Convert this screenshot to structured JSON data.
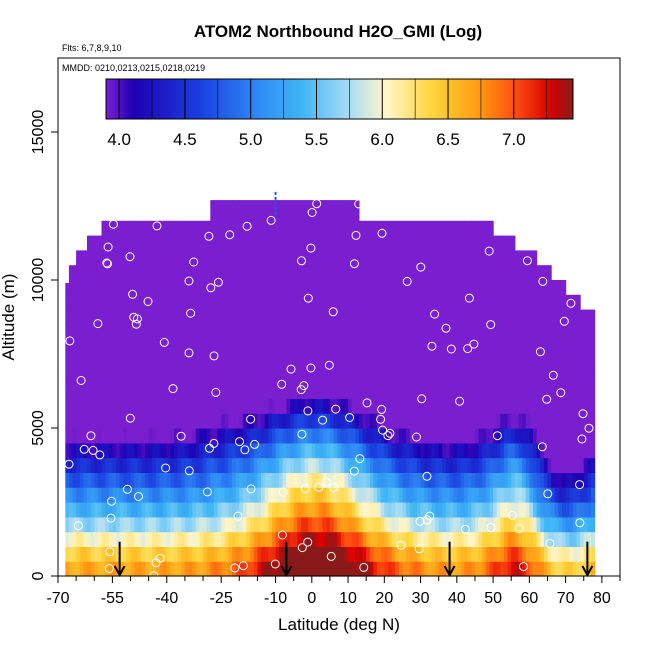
{
  "chart_data": {
    "type": "heatmap",
    "title": "ATOM2 Northbound H2O_GMI (Log)",
    "subtitle_flights": "Flts: 6,7,8,9,10",
    "subtitle_dates": "MMDD: 0210,0213,0215,0218,0219",
    "xlabel": "Latitude (deg N)",
    "ylabel": "Altitude (m)",
    "xlim": [
      -70,
      85
    ],
    "ylim": [
      0,
      17500
    ],
    "x_ticks": [
      -70,
      -55,
      -40,
      -25,
      -10,
      0,
      10,
      20,
      30,
      40,
      50,
      60,
      70,
      80
    ],
    "x_minor_ticks": [
      -65,
      -60,
      -50,
      -45,
      -35,
      -30,
      -20,
      -15,
      -5,
      5,
      15,
      25,
      35,
      45,
      55,
      65,
      75,
      85
    ],
    "y_ticks": [
      0,
      5000,
      10000,
      15000
    ],
    "colorbar": {
      "ticks": [
        4.0,
        4.5,
        5.0,
        5.5,
        6.0,
        6.5,
        7.0
      ],
      "range": [
        3.9,
        7.45
      ],
      "palette": [
        "#7a1fcf",
        "#1f00b4",
        "#1a3fe0",
        "#2f8cf5",
        "#3fb6f5",
        "#a8dcf5",
        "#fff6c8",
        "#ffd43a",
        "#ff9a12",
        "#ff4a10",
        "#d90000",
        "#8a1a1a"
      ],
      "palette_positions": [
        0.0,
        0.06,
        0.2,
        0.33,
        0.42,
        0.52,
        0.6,
        0.7,
        0.8,
        0.88,
        0.95,
        1.0
      ]
    },
    "data_region": {
      "top_km_profile": [
        [
          -68,
          9.9
        ],
        [
          -67,
          10.5
        ],
        [
          -65,
          11.0
        ],
        [
          -62,
          11.5
        ],
        [
          -58,
          12.0
        ],
        [
          -30,
          12.0
        ],
        [
          -28,
          12.7
        ],
        [
          10,
          12.7
        ],
        [
          13,
          12.0
        ],
        [
          45,
          12.0
        ],
        [
          50,
          11.5
        ],
        [
          56,
          11.0
        ],
        [
          62,
          10.5
        ],
        [
          66,
          10.0
        ],
        [
          70,
          9.5
        ],
        [
          74,
          9.0
        ],
        [
          78,
          8.5
        ]
      ],
      "x_min": -68,
      "x_max": 80.5,
      "y_min_km": 0
    },
    "contour_features": [
      {
        "name": "surface layer",
        "note": "values above 7.0 near surface"
      },
      {
        "name": "tropical core",
        "center_lat": 0,
        "max_altitude_km": 5.5
      },
      {
        "name": "dry upper troposphere",
        "value_range": [
          4.0,
          5.0
        ]
      }
    ],
    "aircraft_profile_markers_lat": [
      -53,
      -7,
      38,
      76
    ]
  }
}
